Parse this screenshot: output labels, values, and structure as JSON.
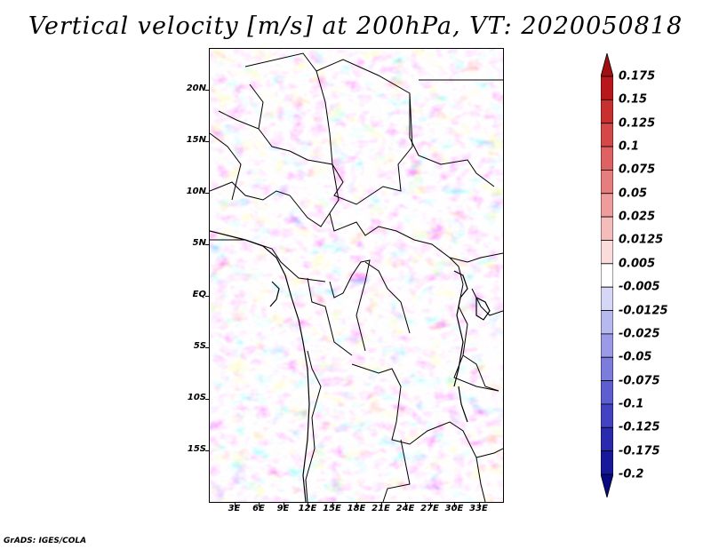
{
  "title": "Vertical velocity [m/s] at 200hPa, VT: 2020050818",
  "credit": "GrADS: IGES/COLA",
  "map": {
    "variable": "Vertical velocity",
    "units": "m/s",
    "level": "200hPa",
    "valid_time": "2020050818",
    "lon_range": [
      0,
      36
    ],
    "lat_range": [
      -20,
      24
    ],
    "lat_labels": [
      "20N",
      "15N",
      "10N",
      "5N",
      "EQ",
      "5S",
      "10S",
      "15S"
    ],
    "lat_values": [
      20,
      15,
      10,
      5,
      0,
      -5,
      -10,
      -15
    ],
    "lon_labels": [
      "3E",
      "6E",
      "9E",
      "12E",
      "15E",
      "18E",
      "21E",
      "24E",
      "27E",
      "30E",
      "33E"
    ],
    "lon_values": [
      3,
      6,
      9,
      12,
      15,
      18,
      21,
      24,
      27,
      30,
      33
    ]
  },
  "colorbar": {
    "labels": [
      "0.175",
      "0.15",
      "0.125",
      "0.1",
      "0.075",
      "0.05",
      "0.025",
      "0.0125",
      "0.005",
      "-0.005",
      "-0.0125",
      "-0.025",
      "-0.05",
      "-0.075",
      "-0.1",
      "-0.125",
      "-0.175",
      "-0.2"
    ],
    "colors": [
      "#a01010",
      "#b8181b",
      "#c83030",
      "#d54848",
      "#de6262",
      "#e67e7e",
      "#ee9c9c",
      "#f5bcbc",
      "#fadcdc",
      "#ffffff",
      "#d6d6f6",
      "#b8b8f0",
      "#9a9ae6",
      "#7c7cdc",
      "#5e5ed0",
      "#4242c2",
      "#2a2aaf",
      "#18189a",
      "#0a0a80"
    ]
  }
}
